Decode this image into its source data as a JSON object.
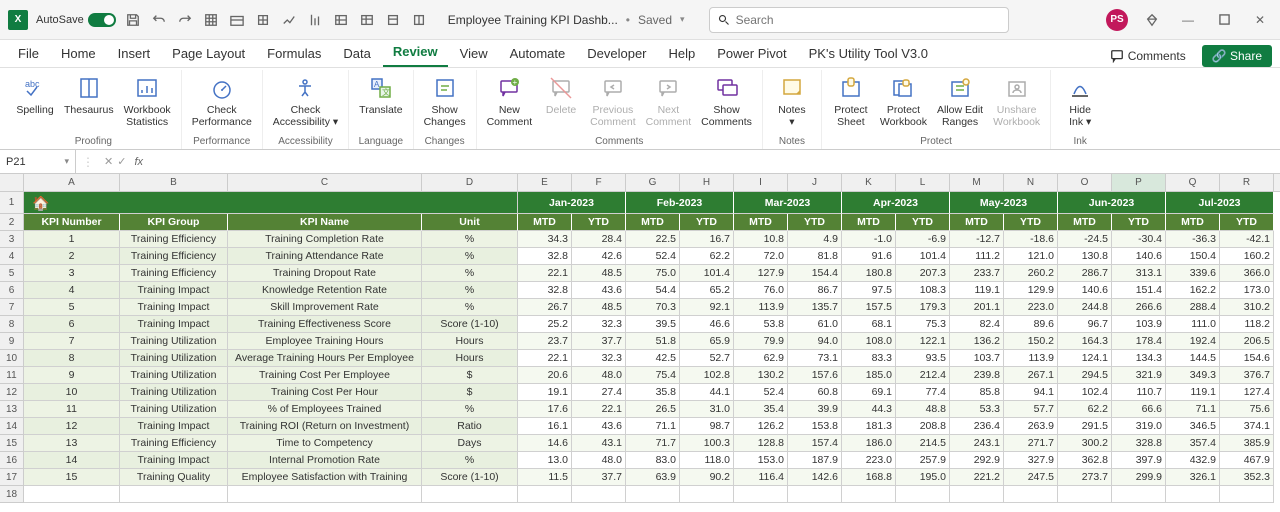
{
  "title": {
    "autosave": "AutoSave",
    "doc": "Employee Training KPI Dashb...",
    "saved": "Saved",
    "search_ph": "Search",
    "avatar": "PS"
  },
  "tabs": [
    "File",
    "Home",
    "Insert",
    "Page Layout",
    "Formulas",
    "Data",
    "Review",
    "View",
    "Automate",
    "Developer",
    "Help",
    "Power Pivot",
    "PK's Utility Tool V3.0"
  ],
  "active_tab": 6,
  "right_btns": {
    "comments": "Comments",
    "share": "Share"
  },
  "ribbon": {
    "groups": [
      {
        "label": "Proofing",
        "items": [
          {
            "label": "Spelling",
            "icon": "abc"
          },
          {
            "label": "Thesaurus",
            "icon": "book"
          },
          {
            "label": "Workbook\nStatistics",
            "icon": "stats"
          }
        ]
      },
      {
        "label": "Performance",
        "items": [
          {
            "label": "Check\nPerformance",
            "icon": "perf"
          }
        ]
      },
      {
        "label": "Accessibility",
        "items": [
          {
            "label": "Check\nAccessibility ▾",
            "icon": "access"
          }
        ]
      },
      {
        "label": "Language",
        "items": [
          {
            "label": "Translate",
            "icon": "trans"
          }
        ]
      },
      {
        "label": "Changes",
        "items": [
          {
            "label": "Show\nChanges",
            "icon": "changes"
          }
        ]
      },
      {
        "label": "Comments",
        "items": [
          {
            "label": "New\nComment",
            "icon": "newc"
          },
          {
            "label": "Delete",
            "icon": "del",
            "disabled": true
          },
          {
            "label": "Previous\nComment",
            "icon": "prev",
            "disabled": true
          },
          {
            "label": "Next\nComment",
            "icon": "next",
            "disabled": true
          },
          {
            "label": "Show\nComments",
            "icon": "showc"
          }
        ]
      },
      {
        "label": "Notes",
        "items": [
          {
            "label": "Notes\n▾",
            "icon": "notes"
          }
        ]
      },
      {
        "label": "Protect",
        "items": [
          {
            "label": "Protect\nSheet",
            "icon": "psheet"
          },
          {
            "label": "Protect\nWorkbook",
            "icon": "pwb"
          },
          {
            "label": "Allow Edit\nRanges",
            "icon": "aer"
          },
          {
            "label": "Unshare\nWorkbook",
            "icon": "unshare",
            "disabled": true
          }
        ]
      },
      {
        "label": "Ink",
        "items": [
          {
            "label": "Hide\nInk ▾",
            "icon": "ink"
          }
        ]
      }
    ]
  },
  "formula": {
    "namebox": "P21",
    "value": ""
  },
  "columns": [
    "A",
    "B",
    "C",
    "D",
    "E",
    "F",
    "G",
    "H",
    "I",
    "J",
    "K",
    "L",
    "M",
    "N",
    "O",
    "P",
    "Q",
    "R"
  ],
  "selected_col": 15,
  "months": [
    "Jan-2023",
    "Feb-2023",
    "Mar-2023",
    "Apr-2023",
    "May-2023",
    "Jun-2023",
    "Jul-2023"
  ],
  "hdr2": [
    "KPI Number",
    "KPI Group",
    "KPI Name",
    "Unit",
    "MTD",
    "YTD",
    "MTD",
    "YTD",
    "MTD",
    "YTD",
    "MTD",
    "YTD",
    "MTD",
    "YTD",
    "MTD",
    "YTD",
    "MTD",
    "YTD"
  ],
  "rows": [
    [
      1,
      "Training Efficiency",
      "Training Completion Rate",
      "%",
      34.3,
      28.4,
      22.5,
      16.7,
      10.8,
      4.9,
      -1.0,
      -6.9,
      -12.7,
      -18.6,
      -24.5,
      -30.4,
      -36.3,
      -42.1
    ],
    [
      2,
      "Training Efficiency",
      "Training Attendance Rate",
      "%",
      32.8,
      42.6,
      52.4,
      62.2,
      72.0,
      81.8,
      91.6,
      101.4,
      111.2,
      121.0,
      130.8,
      140.6,
      150.4,
      160.2
    ],
    [
      3,
      "Training Efficiency",
      "Training Dropout Rate",
      "%",
      22.1,
      48.5,
      75.0,
      101.4,
      127.9,
      154.4,
      180.8,
      207.3,
      233.7,
      260.2,
      286.7,
      313.1,
      339.6,
      366.0
    ],
    [
      4,
      "Training Impact",
      "Knowledge Retention Rate",
      "%",
      32.8,
      43.6,
      54.4,
      65.2,
      76.0,
      86.7,
      97.5,
      108.3,
      119.1,
      129.9,
      140.6,
      151.4,
      162.2,
      173.0
    ],
    [
      5,
      "Training Impact",
      "Skill Improvement Rate",
      "%",
      26.7,
      48.5,
      70.3,
      92.1,
      113.9,
      135.7,
      157.5,
      179.3,
      201.1,
      223.0,
      244.8,
      266.6,
      288.4,
      310.2
    ],
    [
      6,
      "Training Impact",
      "Training Effectiveness Score",
      "Score (1-10)",
      25.2,
      32.3,
      39.5,
      46.6,
      53.8,
      61.0,
      68.1,
      75.3,
      82.4,
      89.6,
      96.7,
      103.9,
      111.0,
      118.2
    ],
    [
      7,
      "Training Utilization",
      "Employee Training Hours",
      "Hours",
      23.7,
      37.7,
      51.8,
      65.9,
      79.9,
      94.0,
      108.0,
      122.1,
      136.2,
      150.2,
      164.3,
      178.4,
      192.4,
      206.5
    ],
    [
      8,
      "Training Utilization",
      "Average Training Hours Per Employee",
      "Hours",
      22.1,
      32.3,
      42.5,
      52.7,
      62.9,
      73.1,
      83.3,
      93.5,
      103.7,
      113.9,
      124.1,
      134.3,
      144.5,
      154.6
    ],
    [
      9,
      "Training Utilization",
      "Training Cost Per Employee",
      "$",
      20.6,
      48.0,
      75.4,
      102.8,
      130.2,
      157.6,
      185.0,
      212.4,
      239.8,
      267.1,
      294.5,
      321.9,
      349.3,
      376.7
    ],
    [
      10,
      "Training Utilization",
      "Training Cost Per Hour",
      "$",
      19.1,
      27.4,
      35.8,
      44.1,
      52.4,
      60.8,
      69.1,
      77.4,
      85.8,
      94.1,
      102.4,
      110.7,
      119.1,
      127.4
    ],
    [
      11,
      "Training Utilization",
      "% of Employees Trained",
      "%",
      17.6,
      22.1,
      26.5,
      31.0,
      35.4,
      39.9,
      44.3,
      48.8,
      53.3,
      57.7,
      62.2,
      66.6,
      71.1,
      75.6
    ],
    [
      12,
      "Training Impact",
      "Training ROI (Return on Investment)",
      "Ratio",
      16.1,
      43.6,
      71.1,
      98.7,
      126.2,
      153.8,
      181.3,
      208.8,
      236.4,
      263.9,
      291.5,
      319.0,
      346.5,
      374.1
    ],
    [
      13,
      "Training Efficiency",
      "Time to Competency",
      "Days",
      14.6,
      43.1,
      71.7,
      100.3,
      128.8,
      157.4,
      186.0,
      214.5,
      243.1,
      271.7,
      300.2,
      328.8,
      357.4,
      385.9
    ],
    [
      14,
      "Training Impact",
      "Internal Promotion Rate",
      "%",
      13.0,
      48.0,
      83.0,
      118.0,
      153.0,
      187.9,
      223.0,
      257.9,
      292.9,
      327.9,
      362.8,
      397.9,
      432.9,
      467.9
    ],
    [
      15,
      "Training Quality",
      "Employee Satisfaction with Training",
      "Score (1-10)",
      11.5,
      37.7,
      63.9,
      90.2,
      116.4,
      142.6,
      168.8,
      195.0,
      221.2,
      247.5,
      273.7,
      299.9,
      326.1,
      352.3
    ]
  ],
  "colors": {
    "header_green": "#2e7d32",
    "subheader_green": "#548235",
    "row_light": "#e8f0df",
    "brand": "#107c41"
  }
}
